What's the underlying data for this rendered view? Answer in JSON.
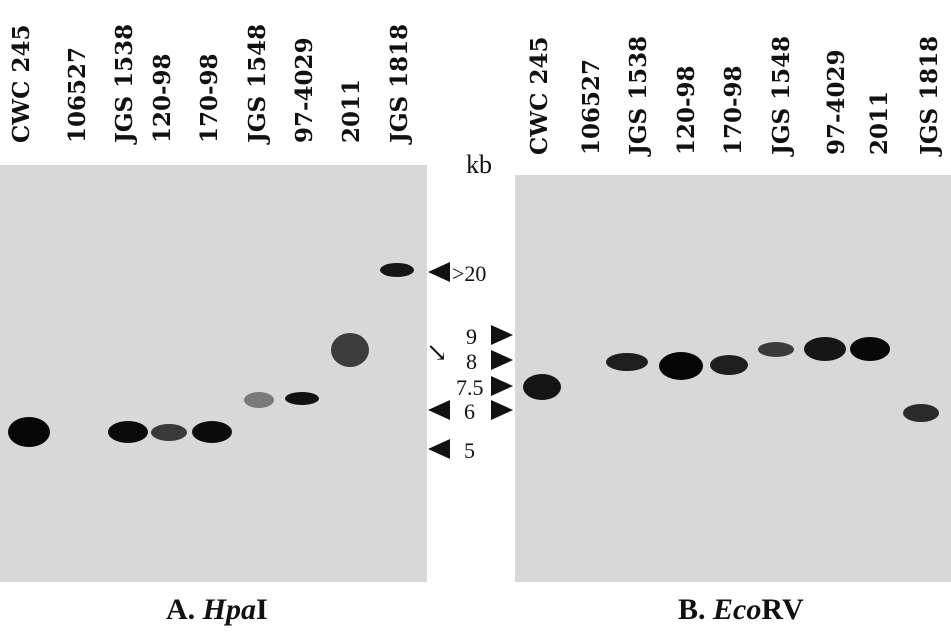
{
  "panel_a": {
    "lanes": [
      "CWC 245",
      "106527",
      "JGS 1538",
      "120-98",
      "170-98",
      "JGS 1548",
      "97-4029",
      "2011",
      "JGS 1818"
    ],
    "caption_prefix": "A. ",
    "caption_italic": "Hpa",
    "caption_suffix": "I"
  },
  "panel_b": {
    "lanes": [
      "CWC 245",
      "106527",
      "JGS 1538",
      "120-98",
      "170-98",
      "JGS 1548",
      "97-4029",
      "2011",
      "JGS 1818"
    ],
    "caption_prefix": "B. ",
    "caption_italic": "Eco",
    "caption_suffix": "RV"
  },
  "size_markers": {
    "unit": "kb",
    "labels": [
      ">20",
      "9",
      "8",
      "7.5",
      "6",
      "5"
    ]
  }
}
